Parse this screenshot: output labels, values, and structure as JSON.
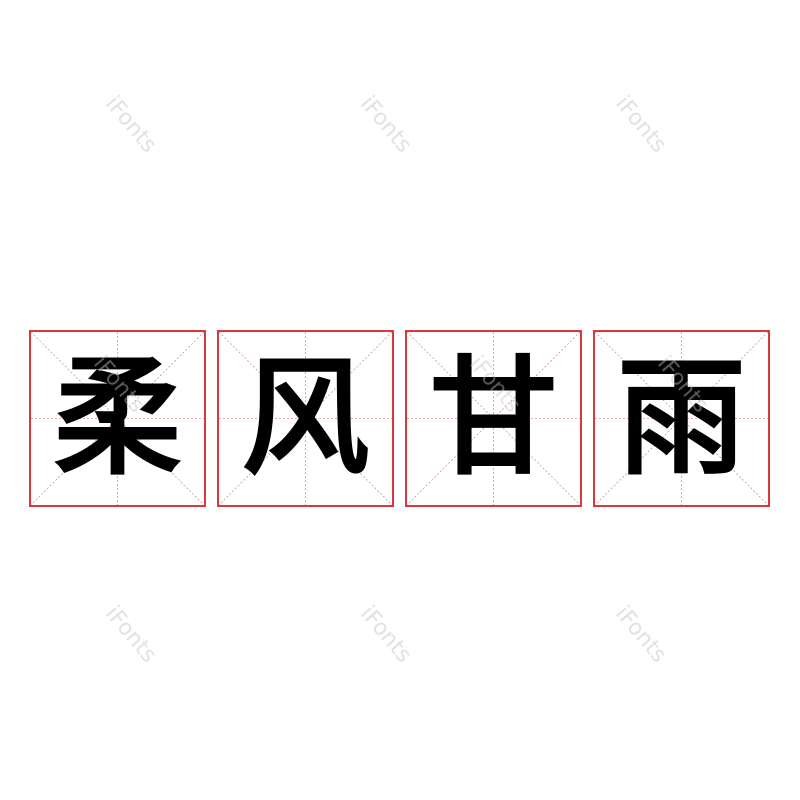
{
  "characters": [
    "柔",
    "风",
    "甘",
    "雨"
  ],
  "watermark": "iFonts",
  "colors": {
    "grid": "#d9393e",
    "text": "#000000",
    "watermark": "#e6e0e0"
  }
}
